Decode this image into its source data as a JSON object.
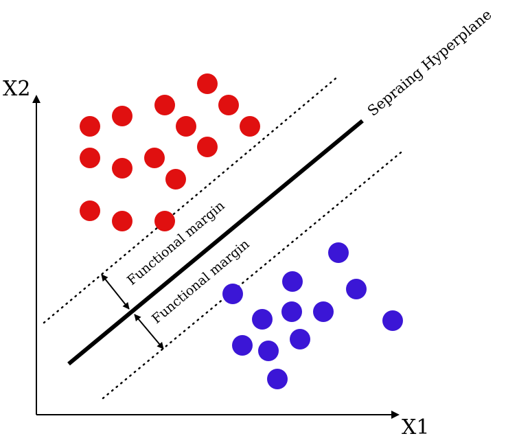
{
  "axes": {
    "x_label": "X1",
    "y_label": "X2"
  },
  "hyperplane_label": "Sepraing Hyperplane",
  "margin_labels": [
    "Functional margin",
    "Functional margin"
  ],
  "colors": {
    "class_a": "#e01010",
    "class_b": "#3b16d6",
    "lines": "#000000"
  }
}
